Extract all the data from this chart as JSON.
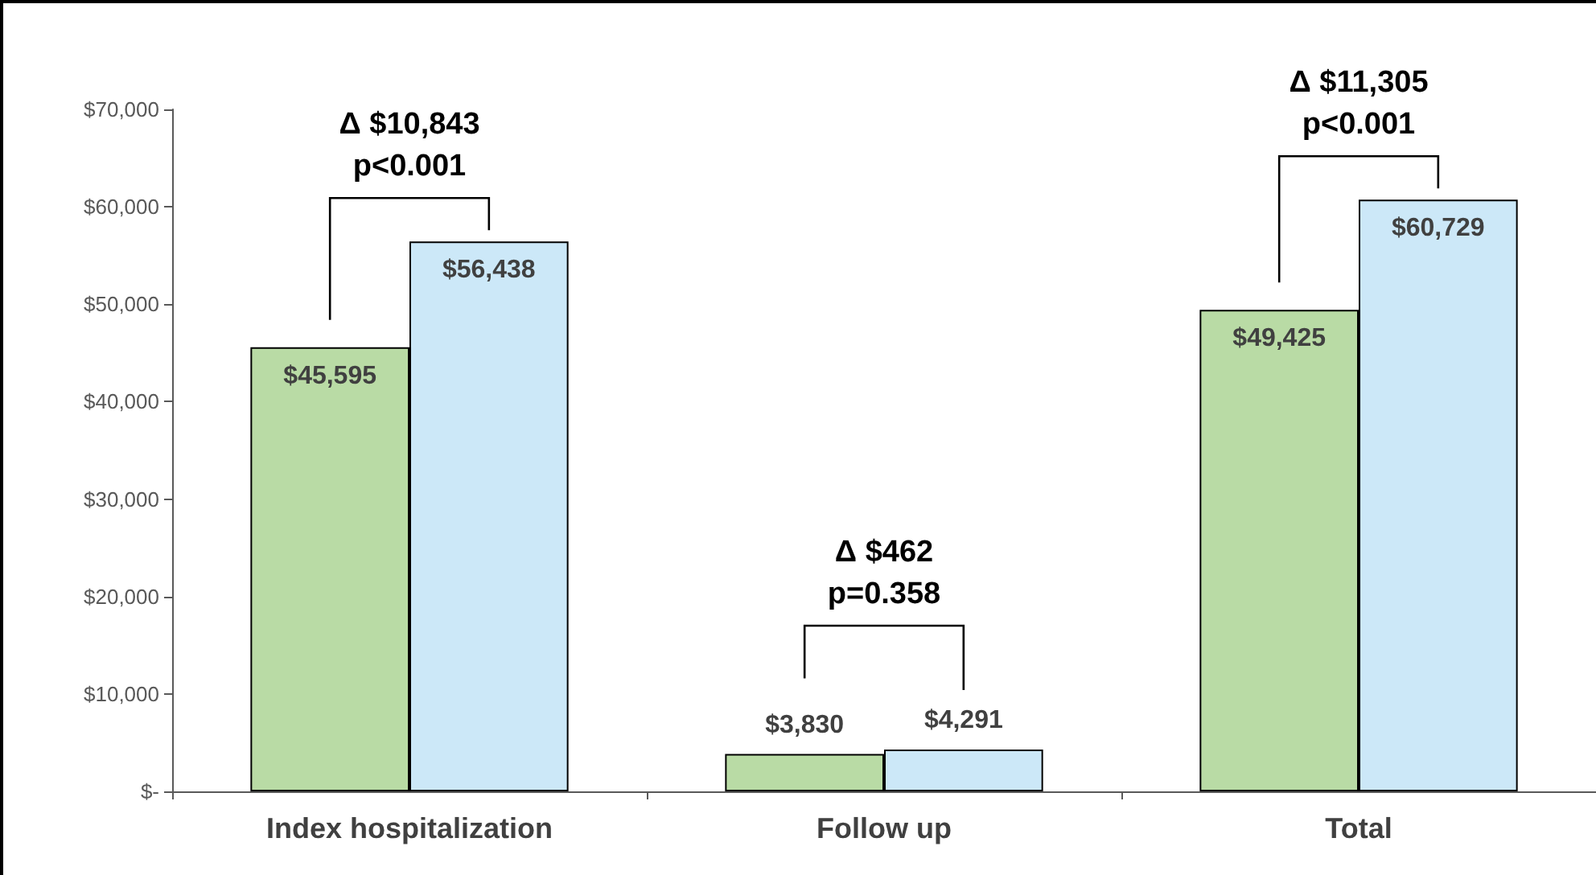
{
  "chart_data": {
    "type": "bar",
    "categories": [
      "Index hospitalization",
      "Follow up",
      "Total"
    ],
    "series": [
      {
        "color": "#b9dba5",
        "values": [
          45595,
          3830,
          49425
        ],
        "value_labels": [
          "$45,595",
          "$3,830",
          "$49,425"
        ]
      },
      {
        "color": "#cce8f8",
        "values": [
          56438,
          4291,
          60729
        ],
        "value_labels": [
          "$56,438",
          "$4,291",
          "$60,729"
        ]
      }
    ],
    "ylim": [
      0,
      70000
    ],
    "yticks": [
      {
        "value": 0,
        "label": "$-"
      },
      {
        "value": 10000,
        "label": "$10,000"
      },
      {
        "value": 20000,
        "label": "$20,000"
      },
      {
        "value": 30000,
        "label": "$30,000"
      },
      {
        "value": 40000,
        "label": "$40,000"
      },
      {
        "value": 50000,
        "label": "$50,000"
      },
      {
        "value": 60000,
        "label": "$60,000"
      },
      {
        "value": 70000,
        "label": "$70,000"
      }
    ],
    "grid": false,
    "annotations": [
      "Δ $10,843\np<0.001",
      "Δ $462\np=0.358",
      "Δ $11,305\np<0.001"
    ]
  }
}
